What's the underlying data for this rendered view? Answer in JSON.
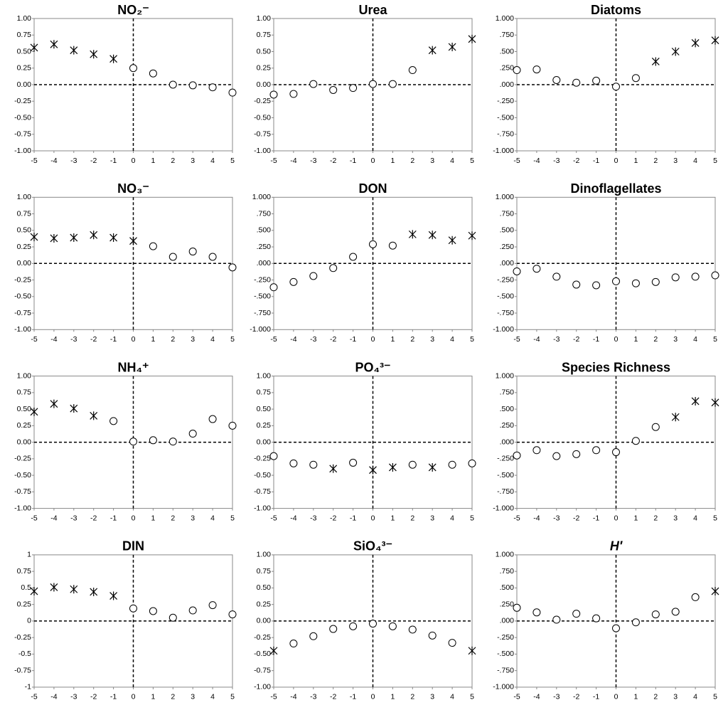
{
  "chart_data": [
    {
      "type": "scatter",
      "title": "NO₂⁻",
      "x": [
        -5,
        -4,
        -3,
        -2,
        -1,
        0,
        1,
        2,
        3,
        4,
        5
      ],
      "values": [
        0.56,
        0.61,
        0.52,
        0.46,
        0.39,
        0.25,
        0.17,
        0.0,
        -0.01,
        -0.04,
        -0.12
      ],
      "markers": [
        "star",
        "star",
        "star",
        "star",
        "star",
        "circle",
        "circle",
        "circle",
        "circle",
        "circle",
        "circle"
      ],
      "xlim": [
        -5,
        5
      ],
      "ylim": [
        -1,
        1
      ],
      "xticks": [
        -5,
        -4,
        -3,
        -2,
        -1,
        0,
        1,
        2,
        3,
        4,
        5
      ],
      "yticks": [
        {
          "value": -1,
          "label": "-1.00"
        },
        -0.75,
        {
          "value": -0.5,
          "label": "-0.50"
        },
        -0.25,
        {
          "value": 0,
          "label": "0.00"
        },
        0.25,
        {
          "value": 0.5,
          "label": "0.50"
        },
        0.75,
        {
          "value": 1,
          "label": "1.00"
        }
      ]
    },
    {
      "type": "scatter",
      "title": "Urea",
      "x": [
        -5,
        -4,
        -3,
        -2,
        -1,
        0,
        1,
        2,
        3,
        4,
        5
      ],
      "values": [
        -0.15,
        -0.14,
        0.01,
        -0.08,
        -0.05,
        0.01,
        0.01,
        0.22,
        0.52,
        0.57,
        0.69
      ],
      "markers": [
        "circle",
        "circle",
        "circle",
        "circle",
        "circle",
        "circle",
        "circle",
        "circle",
        "star",
        "star",
        "star"
      ],
      "xlim": [
        -5,
        5
      ],
      "ylim": [
        -1,
        1
      ],
      "xticks": [
        -5,
        -4,
        -3,
        -2,
        -1,
        0,
        1,
        2,
        3,
        4,
        5
      ],
      "yticks": [
        {
          "value": -1,
          "label": "-1.00"
        },
        -0.75,
        {
          "value": -0.5,
          "label": "-0.50"
        },
        -0.25,
        {
          "value": 0,
          "label": "0.00"
        },
        0.25,
        {
          "value": 0.5,
          "label": "0.50"
        },
        0.75,
        {
          "value": 1,
          "label": "1.00"
        }
      ]
    },
    {
      "type": "scatter",
      "title": "Diatoms",
      "x": [
        -5,
        -4,
        -3,
        -2,
        -1,
        0,
        1,
        2,
        3,
        4,
        5
      ],
      "values": [
        0.22,
        0.23,
        0.07,
        0.03,
        0.06,
        -0.03,
        0.1,
        0.35,
        0.5,
        0.63,
        0.67
      ],
      "markers": [
        "circle",
        "circle",
        "circle",
        "circle",
        "circle",
        "circle",
        "circle",
        "star",
        "star",
        "star",
        "star"
      ],
      "xlim": [
        -5,
        5
      ],
      "ylim": [
        -1,
        1
      ],
      "xticks": [
        -5,
        -4,
        -3,
        -2,
        -1,
        0,
        1,
        2,
        3,
        4,
        5
      ],
      "yticks": [
        {
          "value": -1,
          "label": "-1.000"
        },
        {
          "value": -0.75,
          "label": "-.750"
        },
        {
          "value": -0.5,
          "label": "-.500"
        },
        {
          "value": -0.25,
          "label": "-.250"
        },
        {
          "value": 0,
          "label": ".000"
        },
        {
          "value": 0.25,
          "label": ".250"
        },
        {
          "value": 0.5,
          "label": ".500"
        },
        {
          "value": 0.75,
          "label": ".750"
        },
        {
          "value": 1,
          "label": "1.000"
        }
      ]
    },
    {
      "type": "scatter",
      "title": "NO₃⁻",
      "x": [
        -5,
        -4,
        -3,
        -2,
        -1,
        0,
        1,
        2,
        3,
        4,
        5
      ],
      "values": [
        0.4,
        0.38,
        0.39,
        0.43,
        0.39,
        0.34,
        0.26,
        0.1,
        0.18,
        0.1,
        -0.06
      ],
      "markers": [
        "star",
        "star",
        "star",
        "star",
        "star",
        "star",
        "circle",
        "circle",
        "circle",
        "circle",
        "circle"
      ],
      "xlim": [
        -5,
        5
      ],
      "ylim": [
        -1,
        1
      ],
      "xticks": [
        -5,
        -4,
        -3,
        -2,
        -1,
        0,
        1,
        2,
        3,
        4,
        5
      ],
      "yticks": [
        {
          "value": -1,
          "label": "-1.00"
        },
        -0.75,
        {
          "value": -0.5,
          "label": "-0.50"
        },
        -0.25,
        {
          "value": 0,
          "label": "0.00"
        },
        0.25,
        {
          "value": 0.5,
          "label": "0.50"
        },
        0.75,
        {
          "value": 1,
          "label": "1.00"
        }
      ]
    },
    {
      "type": "scatter",
      "title": "DON",
      "x": [
        -5,
        -4,
        -3,
        -2,
        -1,
        0,
        1,
        2,
        3,
        4,
        5
      ],
      "values": [
        -0.36,
        -0.28,
        -0.19,
        -0.07,
        0.1,
        0.29,
        0.27,
        0.44,
        0.43,
        0.35,
        0.42
      ],
      "markers": [
        "circle",
        "circle",
        "circle",
        "circle",
        "circle",
        "circle",
        "circle",
        "star",
        "star",
        "star",
        "star"
      ],
      "xlim": [
        -5,
        5
      ],
      "ylim": [
        -1,
        1
      ],
      "xticks": [
        -5,
        -4,
        -3,
        -2,
        -1,
        0,
        1,
        2,
        3,
        4,
        5
      ],
      "yticks": [
        {
          "value": -1,
          "label": "-1.000"
        },
        {
          "value": -0.75,
          "label": "-.750"
        },
        {
          "value": -0.5,
          "label": "-.500"
        },
        {
          "value": -0.25,
          "label": "-.250"
        },
        {
          "value": 0,
          "label": ".000"
        },
        {
          "value": 0.25,
          "label": ".250"
        },
        {
          "value": 0.5,
          "label": ".500"
        },
        {
          "value": 0.75,
          "label": ".750"
        },
        {
          "value": 1,
          "label": "1.000"
        }
      ]
    },
    {
      "type": "scatter",
      "title": "Dinoflagellates",
      "x": [
        -5,
        -4,
        -3,
        -2,
        -1,
        0,
        1,
        2,
        3,
        4,
        5
      ],
      "values": [
        -0.12,
        -0.08,
        -0.2,
        -0.32,
        -0.33,
        -0.27,
        -0.3,
        -0.28,
        -0.21,
        -0.2,
        -0.18
      ],
      "markers": [
        "circle",
        "circle",
        "circle",
        "circle",
        "circle",
        "circle",
        "circle",
        "circle",
        "circle",
        "circle",
        "circle"
      ],
      "xlim": [
        -5,
        5
      ],
      "ylim": [
        -1,
        1
      ],
      "xticks": [
        -5,
        -4,
        -3,
        -2,
        -1,
        0,
        1,
        2,
        3,
        4,
        5
      ],
      "yticks": [
        {
          "value": -1,
          "label": "-1.000"
        },
        {
          "value": -0.75,
          "label": "-.750"
        },
        {
          "value": -0.5,
          "label": "-.500"
        },
        {
          "value": -0.25,
          "label": "-.250"
        },
        {
          "value": 0,
          "label": ".000"
        },
        {
          "value": 0.25,
          "label": ".250"
        },
        {
          "value": 0.5,
          "label": ".500"
        },
        {
          "value": 0.75,
          "label": ".750"
        },
        {
          "value": 1,
          "label": "1.000"
        }
      ]
    },
    {
      "type": "scatter",
      "title": "NH₄⁺",
      "x": [
        -5,
        -4,
        -3,
        -2,
        -1,
        0,
        1,
        2,
        3,
        4,
        5
      ],
      "values": [
        0.46,
        0.58,
        0.51,
        0.4,
        0.32,
        0.01,
        0.03,
        0.01,
        0.13,
        0.35,
        0.25
      ],
      "markers": [
        "star",
        "star",
        "star",
        "star",
        "circle",
        "circle",
        "circle",
        "circle",
        "circle",
        "circle",
        "circle"
      ],
      "xlim": [
        -5,
        5
      ],
      "ylim": [
        -1,
        1
      ],
      "xticks": [
        -5,
        -4,
        -3,
        -2,
        -1,
        0,
        1,
        2,
        3,
        4,
        5
      ],
      "yticks": [
        {
          "value": -1,
          "label": "-1.00"
        },
        -0.75,
        {
          "value": -0.5,
          "label": "-0.50"
        },
        -0.25,
        {
          "value": 0,
          "label": "0.00"
        },
        0.25,
        {
          "value": 0.5,
          "label": "0.50"
        },
        0.75,
        {
          "value": 1,
          "label": "1.00"
        }
      ]
    },
    {
      "type": "scatter",
      "title": "PO₄³⁻",
      "x": [
        -5,
        -4,
        -3,
        -2,
        -1,
        0,
        1,
        2,
        3,
        4,
        5
      ],
      "values": [
        -0.21,
        -0.32,
        -0.34,
        -0.4,
        -0.31,
        -0.42,
        -0.38,
        -0.34,
        -0.38,
        -0.34,
        -0.32
      ],
      "markers": [
        "circle",
        "circle",
        "circle",
        "star",
        "circle",
        "star",
        "star",
        "circle",
        "star",
        "circle",
        "circle"
      ],
      "xlim": [
        -5,
        5
      ],
      "ylim": [
        -1,
        1
      ],
      "xticks": [
        -5,
        -4,
        -3,
        -2,
        -1,
        0,
        1,
        2,
        3,
        4,
        5
      ],
      "yticks": [
        {
          "value": -1,
          "label": "-1.00"
        },
        -0.75,
        {
          "value": -0.5,
          "label": "-0.50"
        },
        -0.25,
        {
          "value": 0,
          "label": "0.00"
        },
        0.25,
        {
          "value": 0.5,
          "label": "0.50"
        },
        0.75,
        {
          "value": 1,
          "label": "1.00"
        }
      ]
    },
    {
      "type": "scatter",
      "title": "Species Richness",
      "x": [
        -5,
        -4,
        -3,
        -2,
        -1,
        0,
        1,
        2,
        3,
        4,
        5
      ],
      "values": [
        -0.2,
        -0.12,
        -0.21,
        -0.18,
        -0.12,
        -0.15,
        0.02,
        0.23,
        0.38,
        0.62,
        0.6
      ],
      "markers": [
        "circle",
        "circle",
        "circle",
        "circle",
        "circle",
        "circle",
        "circle",
        "circle",
        "star",
        "star",
        "star"
      ],
      "xlim": [
        -5,
        5
      ],
      "ylim": [
        -1,
        1
      ],
      "xticks": [
        -5,
        -4,
        -3,
        -2,
        -1,
        0,
        1,
        2,
        3,
        4,
        5
      ],
      "yticks": [
        {
          "value": -1,
          "label": "-1.000"
        },
        {
          "value": -0.75,
          "label": "-.750"
        },
        {
          "value": -0.5,
          "label": "-.500"
        },
        {
          "value": -0.25,
          "label": "-.250"
        },
        {
          "value": 0,
          "label": ".000"
        },
        {
          "value": 0.25,
          "label": ".250"
        },
        {
          "value": 0.5,
          "label": ".500"
        },
        {
          "value": 0.75,
          "label": ".750"
        },
        {
          "value": 1,
          "label": "1.000"
        }
      ]
    },
    {
      "type": "scatter",
      "title": "DIN",
      "x": [
        -5,
        -4,
        -3,
        -2,
        -1,
        0,
        1,
        2,
        3,
        4,
        5
      ],
      "values": [
        0.45,
        0.51,
        0.48,
        0.44,
        0.38,
        0.19,
        0.15,
        0.05,
        0.16,
        0.24,
        0.1
      ],
      "markers": [
        "star",
        "star",
        "star",
        "star",
        "star",
        "circle",
        "circle",
        "circle",
        "circle",
        "circle",
        "circle"
      ],
      "xlim": [
        -5,
        5
      ],
      "ylim": [
        -1,
        1
      ],
      "xticks": [
        -5,
        -4,
        -3,
        -2,
        -1,
        0,
        1,
        2,
        3,
        4,
        5
      ],
      "yticks": [
        -1,
        -0.75,
        -0.5,
        -0.25,
        0,
        0.25,
        0.5,
        0.75,
        1
      ]
    },
    {
      "type": "scatter",
      "title": "SiO₄³⁻",
      "x": [
        -5,
        -4,
        -3,
        -2,
        -1,
        0,
        1,
        2,
        3,
        4,
        5
      ],
      "values": [
        -0.45,
        -0.34,
        -0.23,
        -0.12,
        -0.08,
        -0.04,
        -0.08,
        -0.13,
        -0.22,
        -0.33,
        -0.45
      ],
      "markers": [
        "star",
        "circle",
        "circle",
        "circle",
        "circle",
        "circle",
        "circle",
        "circle",
        "circle",
        "circle",
        "star"
      ],
      "xlim": [
        -5,
        5
      ],
      "ylim": [
        -1,
        1
      ],
      "xticks": [
        -5,
        -4,
        -3,
        -2,
        -1,
        0,
        1,
        2,
        3,
        4,
        5
      ],
      "yticks": [
        {
          "value": -1,
          "label": "-1.00"
        },
        -0.75,
        {
          "value": -0.5,
          "label": "-0.50"
        },
        -0.25,
        {
          "value": 0,
          "label": "0.00"
        },
        0.25,
        {
          "value": 0.5,
          "label": "0.50"
        },
        0.75,
        {
          "value": 1,
          "label": "1.00"
        }
      ]
    },
    {
      "type": "scatter",
      "title": "H′",
      "title_italic": true,
      "x": [
        -5,
        -4,
        -3,
        -2,
        -1,
        0,
        1,
        2,
        3,
        4,
        5
      ],
      "values": [
        0.2,
        0.13,
        0.02,
        0.11,
        0.04,
        -0.11,
        -0.02,
        0.1,
        0.14,
        0.36,
        0.45
      ],
      "markers": [
        "circle",
        "circle",
        "circle",
        "circle",
        "circle",
        "circle",
        "circle",
        "circle",
        "circle",
        "circle",
        "star"
      ],
      "xlim": [
        -5,
        5
      ],
      "ylim": [
        -1,
        1
      ],
      "xticks": [
        -5,
        -4,
        -3,
        -2,
        -1,
        0,
        1,
        2,
        3,
        4,
        5
      ],
      "yticks": [
        {
          "value": -1,
          "label": "-1.000"
        },
        {
          "value": -0.75,
          "label": "-.750"
        },
        {
          "value": -0.5,
          "label": "-.500"
        },
        {
          "value": -0.25,
          "label": "-.250"
        },
        {
          "value": 0,
          "label": ".000"
        },
        {
          "value": 0.25,
          "label": ".250"
        },
        {
          "value": 0.5,
          "label": ".500"
        },
        {
          "value": 0.75,
          "label": ".750"
        },
        {
          "value": 1,
          "label": "1.000"
        }
      ]
    }
  ]
}
